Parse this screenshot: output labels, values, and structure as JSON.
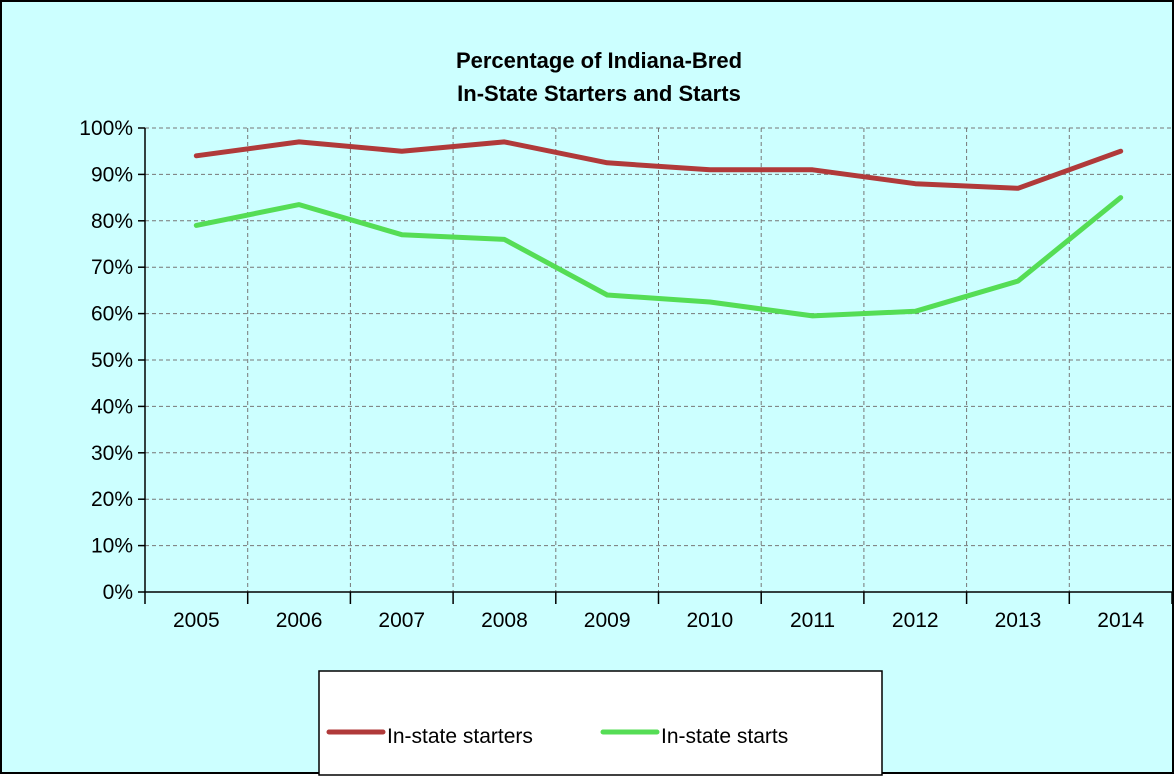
{
  "chart_data": {
    "type": "line",
    "title": [
      "Percentage of Indiana-Bred",
      "In-State Starters and Starts"
    ],
    "x": [
      "2005",
      "2006",
      "2007",
      "2008",
      "2009",
      "2010",
      "2011",
      "2012",
      "2013",
      "2014"
    ],
    "y_ticks": [
      "0%",
      "10%",
      "20%",
      "30%",
      "40%",
      "50%",
      "60%",
      "70%",
      "80%",
      "90%",
      "100%"
    ],
    "ylim": [
      0,
      100
    ],
    "grid": true,
    "legend_position": "bottom",
    "background_color": "#ccffff",
    "series": [
      {
        "name": "In-state starters",
        "color": "#b03a3a",
        "values": [
          94,
          97,
          95,
          97,
          92.5,
          91,
          91,
          88,
          87,
          95
        ]
      },
      {
        "name": "In-state starts",
        "color": "#55dd55",
        "values": [
          79,
          83.5,
          77,
          76,
          64,
          62.5,
          59.5,
          60.5,
          67,
          85
        ]
      }
    ]
  }
}
